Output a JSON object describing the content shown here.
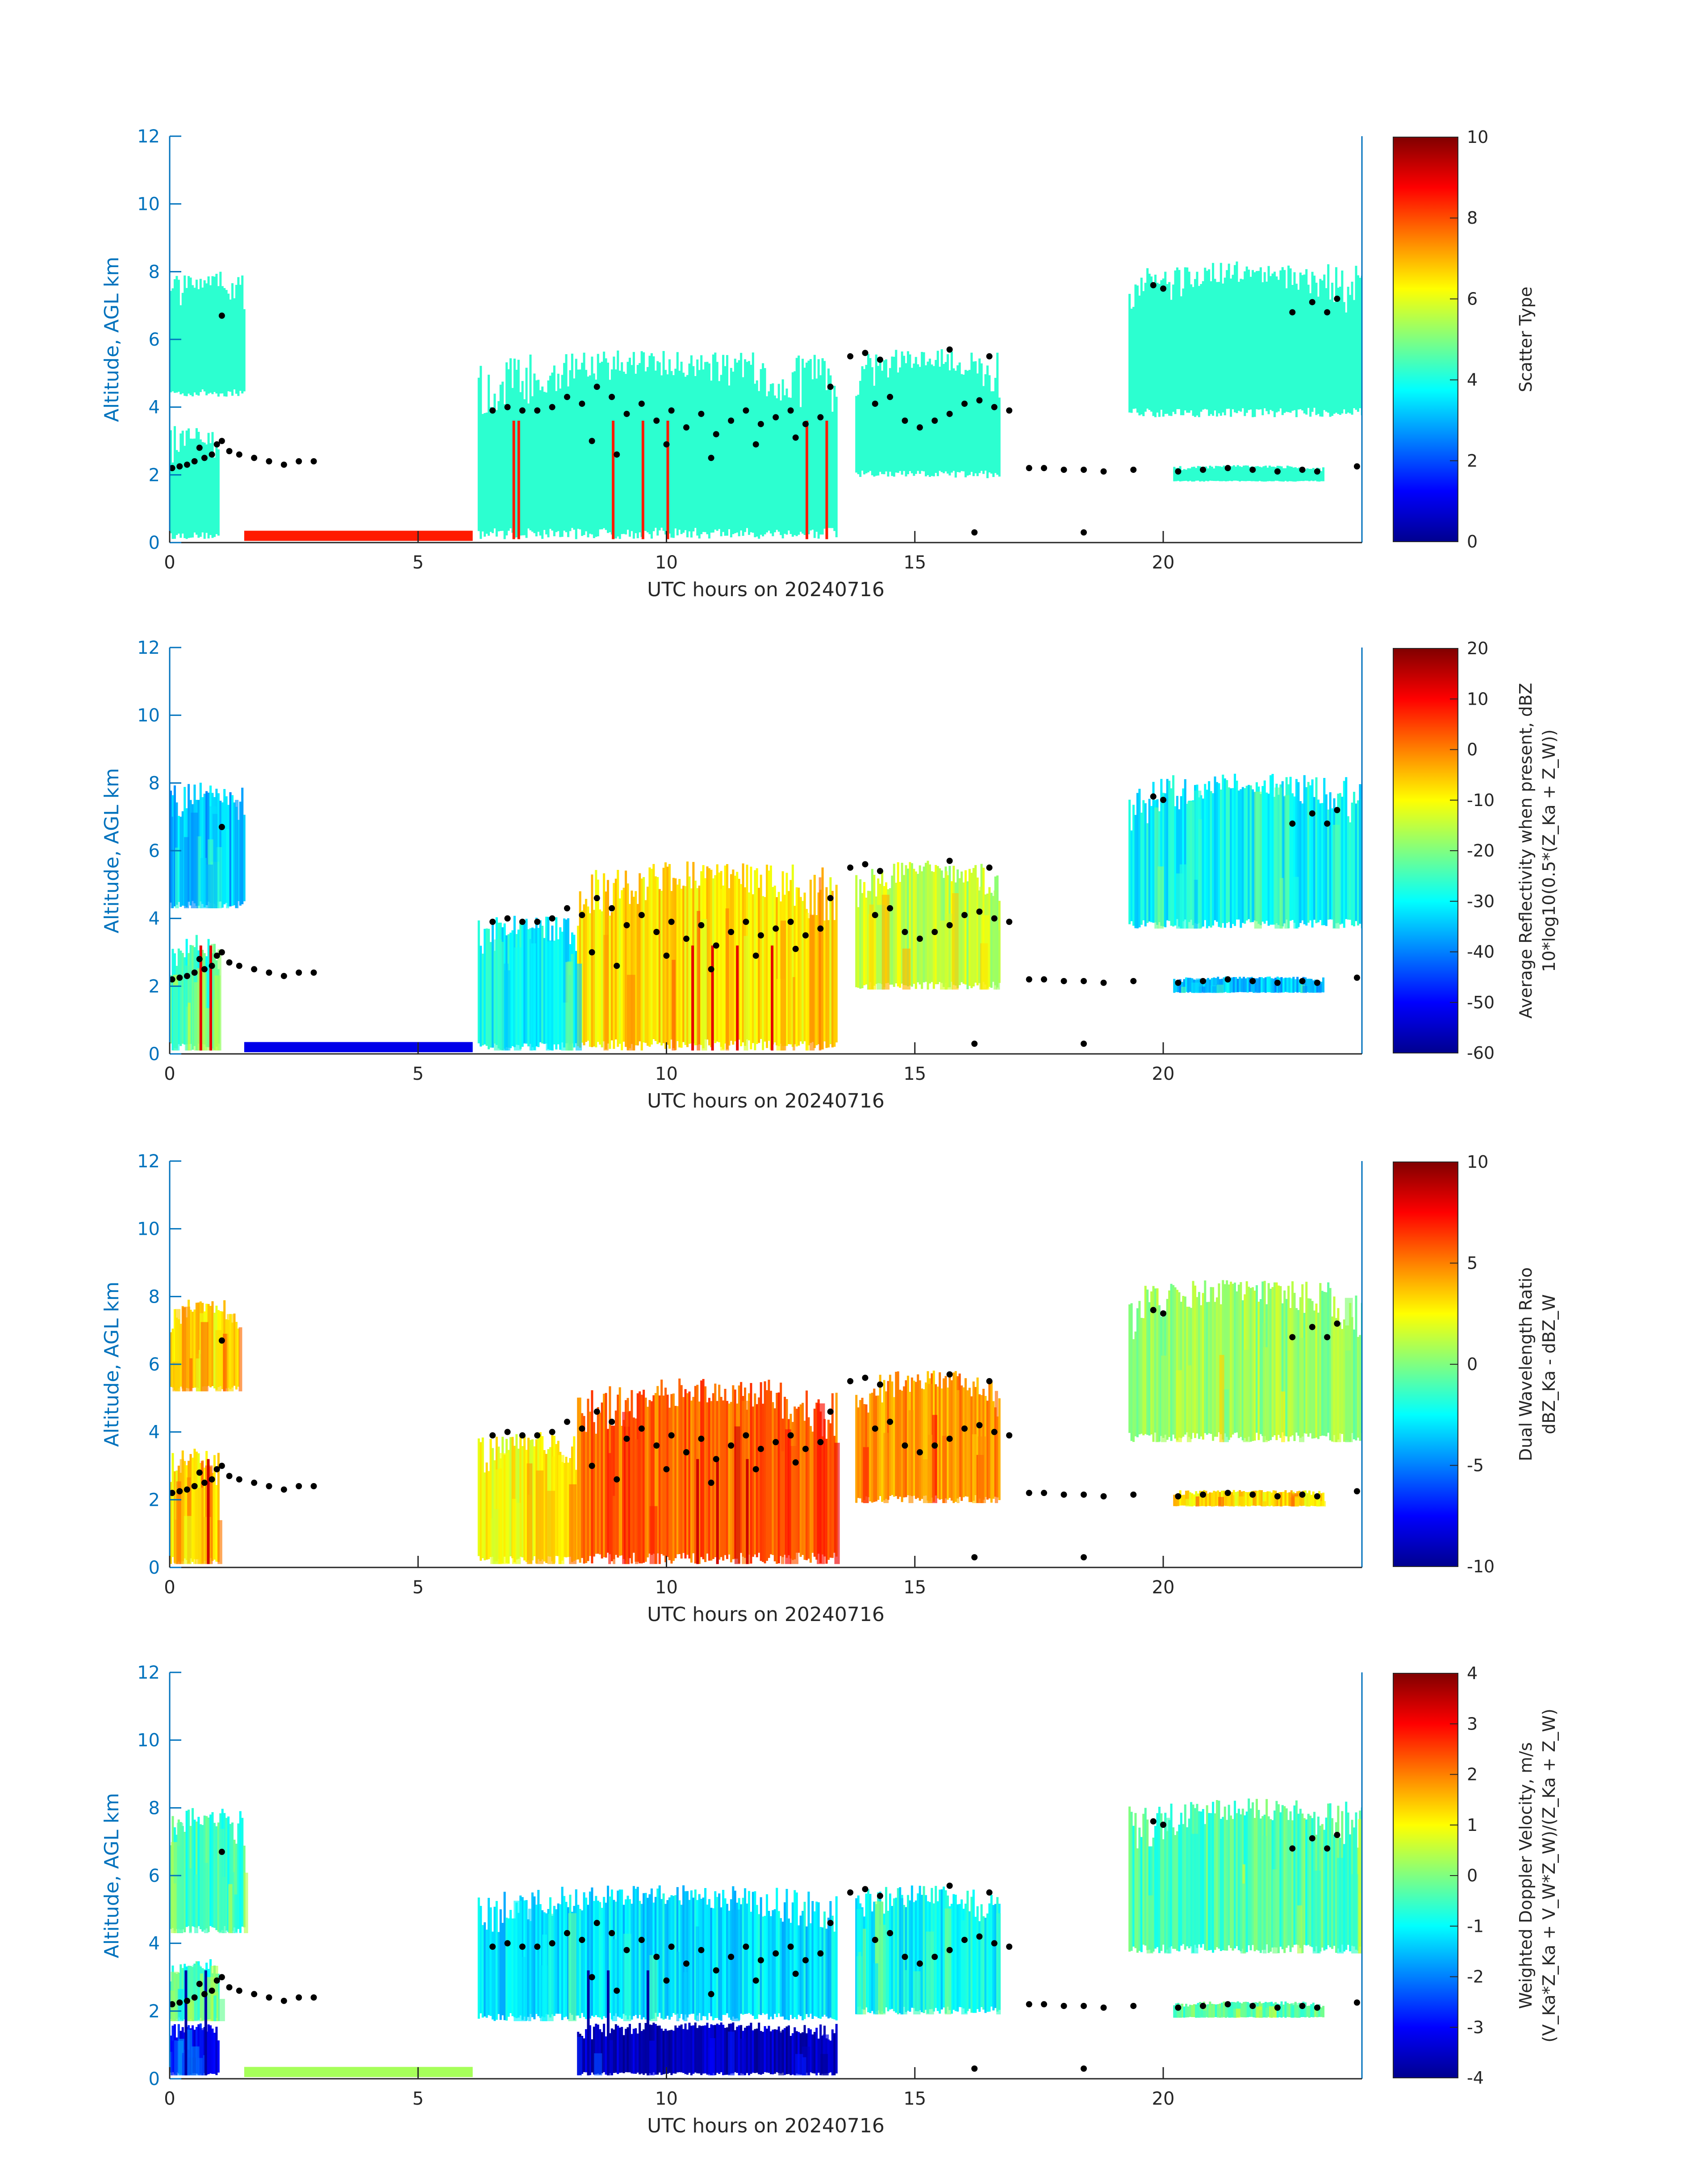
{
  "figure_date": "20240716",
  "colors": {
    "axis": "#0072BD",
    "cloud_default": "#2CFFD0",
    "marker": "#000000",
    "jet": [
      "#00008F",
      "#0000FF",
      "#0080FF",
      "#00FFFF",
      "#80FF80",
      "#FFFF00",
      "#FF8000",
      "#FF0000",
      "#800000"
    ]
  },
  "chart_data": [
    {
      "type": "heatmap",
      "panel": "scatter-type",
      "xlabel": "UTC hours on 20240716",
      "ylabel": "Altitude, AGL km",
      "xlim": [
        0,
        24
      ],
      "ylim": [
        0,
        12
      ],
      "xticks": [
        0,
        5,
        10,
        15,
        20
      ],
      "yticks": [
        0,
        2,
        4,
        6,
        8,
        10,
        12
      ],
      "colorbar": {
        "labels": [
          "Scatter Type"
        ],
        "range": [
          0,
          10
        ],
        "ticks": [
          0,
          2,
          4,
          6,
          8,
          10
        ]
      },
      "cloud_value": 4,
      "cloud_regions": [
        {
          "t0": 0.0,
          "t1": 1.0,
          "z0": 0.1,
          "z1": 3.6,
          "value": 4
        },
        {
          "t0": 0.0,
          "t1": 1.5,
          "z0": 4.3,
          "z1": 8.1,
          "value": 4
        },
        {
          "t0": 6.2,
          "t1": 13.4,
          "z0": 0.1,
          "z1": 5.8,
          "value": 4
        },
        {
          "t0": 13.8,
          "t1": 16.7,
          "z0": 1.9,
          "z1": 5.8,
          "value": 4
        },
        {
          "t0": 19.3,
          "t1": 24.0,
          "z0": 3.7,
          "z1": 8.4,
          "value": 4
        },
        {
          "t0": 20.2,
          "t1": 23.2,
          "z0": 1.8,
          "z1": 2.3,
          "value": 4
        }
      ],
      "surface_precip": {
        "t0": 1.5,
        "t1": 6.1,
        "value": 8.5
      },
      "precip_streaks": [
        6.9,
        7.0,
        8.9,
        9.5,
        10.0,
        12.8,
        13.2
      ]
    },
    {
      "type": "heatmap",
      "panel": "reflectivity",
      "xlabel": "UTC hours on 20240716",
      "ylabel": "Altitude, AGL km",
      "xlim": [
        0,
        24
      ],
      "ylim": [
        0,
        12
      ],
      "xticks": [
        0,
        5,
        10,
        15,
        20
      ],
      "yticks": [
        0,
        2,
        4,
        6,
        8,
        10,
        12
      ],
      "colorbar": {
        "labels": [
          "Average Reflectivity when present, dBZ",
          "10*log10(0.5*(Z_Ka + Z_W))"
        ],
        "range": [
          -60,
          20
        ],
        "ticks": [
          -60,
          -50,
          -40,
          -30,
          -20,
          -10,
          0,
          10,
          20
        ]
      },
      "cloud_regions": [
        {
          "t0": 0.0,
          "t1": 1.0,
          "z0": 0.1,
          "z1": 3.6,
          "value": -25
        },
        {
          "t0": 0.0,
          "t1": 1.5,
          "z0": 4.3,
          "z1": 8.1,
          "value": -35
        },
        {
          "t0": 6.2,
          "t1": 8.2,
          "z0": 0.1,
          "z1": 4.2,
          "value": -30
        },
        {
          "t0": 8.2,
          "t1": 13.4,
          "z0": 0.1,
          "z1": 5.8,
          "value": -8
        },
        {
          "t0": 13.8,
          "t1": 16.7,
          "z0": 1.9,
          "z1": 5.8,
          "value": -15
        },
        {
          "t0": 19.3,
          "t1": 24.0,
          "z0": 3.7,
          "z1": 8.4,
          "value": -30
        },
        {
          "t0": 20.2,
          "t1": 23.2,
          "z0": 1.8,
          "z1": 2.3,
          "value": -35
        }
      ],
      "surface_precip": {
        "t0": 1.5,
        "t1": 6.1,
        "value": -52
      },
      "precip_streaks": [
        0.6,
        0.8,
        10.5,
        10.9,
        11.4,
        12.1
      ]
    },
    {
      "type": "heatmap",
      "panel": "dual-wavelength-ratio",
      "xlabel": "UTC hours on 20240716",
      "ylabel": "Altitude, AGL km",
      "xlim": [
        0,
        24
      ],
      "ylim": [
        0,
        12
      ],
      "xticks": [
        0,
        5,
        10,
        15,
        20
      ],
      "yticks": [
        0,
        2,
        4,
        6,
        8,
        10,
        12
      ],
      "colorbar": {
        "labels": [
          "Dual Wavelength Ratio",
          "dBZ_Ka - dBZ_W"
        ],
        "range": [
          -10,
          10
        ],
        "ticks": [
          -10,
          -5,
          0,
          5,
          10
        ]
      },
      "cloud_regions": [
        {
          "t0": 0.0,
          "t1": 1.0,
          "z0": 0.1,
          "z1": 3.6,
          "value": 3
        },
        {
          "t0": 0.0,
          "t1": 1.4,
          "z0": 5.2,
          "z1": 8.0,
          "value": 3
        },
        {
          "t0": 6.2,
          "t1": 8.2,
          "z0": 0.1,
          "z1": 4.1,
          "value": 2.5
        },
        {
          "t0": 8.2,
          "t1": 13.4,
          "z0": 0.1,
          "z1": 5.7,
          "value": 5.5
        },
        {
          "t0": 13.8,
          "t1": 16.7,
          "z0": 1.9,
          "z1": 5.9,
          "value": 4.5
        },
        {
          "t0": 19.3,
          "t1": 24.0,
          "z0": 3.7,
          "z1": 8.6,
          "value": 0.5
        },
        {
          "t0": 20.2,
          "t1": 23.2,
          "z0": 1.8,
          "z1": 2.3,
          "value": 3
        }
      ],
      "precip_streaks": [
        0.75,
        10.6,
        11.0,
        11.6
      ]
    },
    {
      "type": "heatmap",
      "panel": "doppler-velocity",
      "xlabel": "UTC hours on 20240716",
      "ylabel": "Altitude, AGL km",
      "xlim": [
        0,
        24
      ],
      "ylim": [
        0,
        12
      ],
      "xticks": [
        0,
        5,
        10,
        15,
        20
      ],
      "yticks": [
        0,
        2,
        4,
        6,
        8,
        10,
        12
      ],
      "colorbar": {
        "labels": [
          "Weighted Doppler Velocity, m/s",
          "(V_Ka*Z_Ka + V_W*Z_W)/(Z_Ka + Z_W)"
        ],
        "range": [
          -4,
          4
        ],
        "ticks": [
          -4,
          -3,
          -2,
          -1,
          0,
          1,
          2,
          3,
          4
        ]
      },
      "cloud_regions": [
        {
          "t0": 0.0,
          "t1": 1.0,
          "z0": 1.7,
          "z1": 3.6,
          "value": -0.7
        },
        {
          "t0": 0.0,
          "t1": 1.0,
          "z0": 0.1,
          "z1": 1.7,
          "value": -3.0
        },
        {
          "t0": 0.0,
          "t1": 1.5,
          "z0": 4.3,
          "z1": 8.1,
          "value": -0.5
        },
        {
          "t0": 6.2,
          "t1": 13.4,
          "z0": 1.7,
          "z1": 5.8,
          "value": -1.2
        },
        {
          "t0": 8.2,
          "t1": 13.4,
          "z0": 0.1,
          "z1": 1.7,
          "value": -3.6
        },
        {
          "t0": 13.8,
          "t1": 16.7,
          "z0": 1.9,
          "z1": 5.8,
          "value": -1.0
        },
        {
          "t0": 19.3,
          "t1": 24.0,
          "z0": 3.7,
          "z1": 8.4,
          "value": -0.4
        },
        {
          "t0": 20.2,
          "t1": 23.2,
          "z0": 1.8,
          "z1": 2.3,
          "value": -0.3
        }
      ],
      "surface_precip": {
        "t0": 1.5,
        "t1": 6.1,
        "value": 0.3
      },
      "precip_streaks": [
        0.3,
        0.7,
        8.4,
        8.8,
        9.6
      ]
    }
  ],
  "cloud_base_markers": [
    [
      0.05,
      2.2
    ],
    [
      0.2,
      2.25
    ],
    [
      0.35,
      2.3
    ],
    [
      0.5,
      2.4
    ],
    [
      0.6,
      2.8
    ],
    [
      0.7,
      2.5
    ],
    [
      0.85,
      2.6
    ],
    [
      0.95,
      2.9
    ],
    [
      1.05,
      3.0
    ],
    [
      1.2,
      2.7
    ],
    [
      1.4,
      2.6
    ],
    [
      1.7,
      2.5
    ],
    [
      2.0,
      2.4
    ],
    [
      2.3,
      2.3
    ],
    [
      2.6,
      2.4
    ],
    [
      2.9,
      2.4
    ],
    [
      1.05,
      6.7
    ],
    [
      6.5,
      3.9
    ],
    [
      6.8,
      4.0
    ],
    [
      7.1,
      3.9
    ],
    [
      7.4,
      3.9
    ],
    [
      7.7,
      4.0
    ],
    [
      8.0,
      4.3
    ],
    [
      8.3,
      4.1
    ],
    [
      8.6,
      4.6
    ],
    [
      8.9,
      4.3
    ],
    [
      9.2,
      3.8
    ],
    [
      9.5,
      4.1
    ],
    [
      9.8,
      3.6
    ],
    [
      10.1,
      3.9
    ],
    [
      10.4,
      3.4
    ],
    [
      10.7,
      3.8
    ],
    [
      11.0,
      3.2
    ],
    [
      11.3,
      3.6
    ],
    [
      11.6,
      3.9
    ],
    [
      11.9,
      3.5
    ],
    [
      12.2,
      3.7
    ],
    [
      12.5,
      3.9
    ],
    [
      12.8,
      3.5
    ],
    [
      13.1,
      3.7
    ],
    [
      8.5,
      3.0
    ],
    [
      9.0,
      2.6
    ],
    [
      10.0,
      2.9
    ],
    [
      10.9,
      2.5
    ],
    [
      11.8,
      2.9
    ],
    [
      12.6,
      3.1
    ],
    [
      13.3,
      4.6
    ],
    [
      13.7,
      5.5
    ],
    [
      14.0,
      5.6
    ],
    [
      14.3,
      5.4
    ],
    [
      14.2,
      4.1
    ],
    [
      14.5,
      4.3
    ],
    [
      14.8,
      3.6
    ],
    [
      15.1,
      3.4
    ],
    [
      15.4,
      3.6
    ],
    [
      15.7,
      3.8
    ],
    [
      16.0,
      4.1
    ],
    [
      16.3,
      4.2
    ],
    [
      16.6,
      4.0
    ],
    [
      16.9,
      3.9
    ],
    [
      15.7,
      5.7
    ],
    [
      16.5,
      5.5
    ],
    [
      17.3,
      2.2
    ],
    [
      17.6,
      2.2
    ],
    [
      18.0,
      2.15
    ],
    [
      18.4,
      2.15
    ],
    [
      18.8,
      2.1
    ],
    [
      19.4,
      2.15
    ],
    [
      19.8,
      7.6
    ],
    [
      20.0,
      7.5
    ],
    [
      20.3,
      2.1
    ],
    [
      20.8,
      2.15
    ],
    [
      21.3,
      2.2
    ],
    [
      21.8,
      2.15
    ],
    [
      22.3,
      2.1
    ],
    [
      22.8,
      2.15
    ],
    [
      23.1,
      2.1
    ],
    [
      23.9,
      2.25
    ],
    [
      22.6,
      6.8
    ],
    [
      23.0,
      7.1
    ],
    [
      23.3,
      6.8
    ],
    [
      23.5,
      7.2
    ],
    [
      16.2,
      0.3
    ],
    [
      18.4,
      0.3
    ]
  ]
}
